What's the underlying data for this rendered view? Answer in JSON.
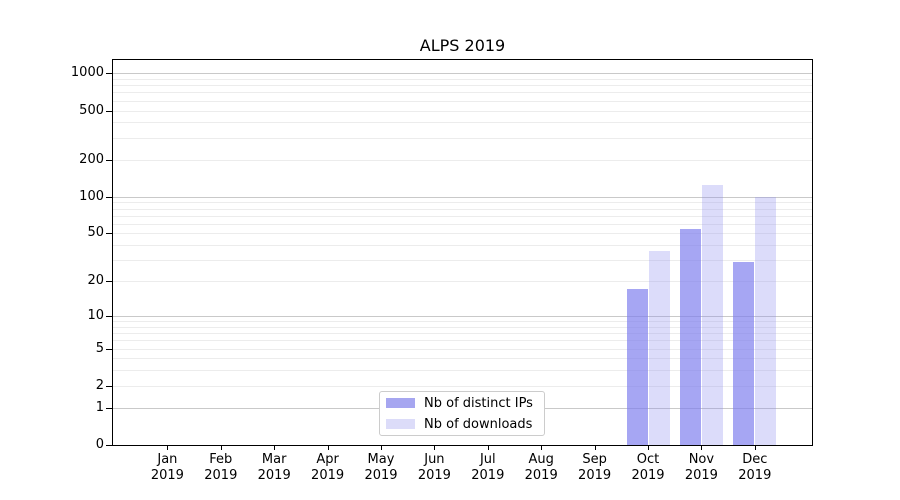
{
  "title": "ALPS 2019",
  "chart_data": {
    "type": "bar",
    "title": "ALPS 2019",
    "categories": [
      "Jan 2019",
      "Feb 2019",
      "Mar 2019",
      "Apr 2019",
      "May 2019",
      "Jun 2019",
      "Jul 2019",
      "Aug 2019",
      "Sep 2019",
      "Oct 2019",
      "Nov 2019",
      "Dec 2019"
    ],
    "series": [
      {
        "name": "Nb of distinct IPs",
        "color": "#a6a6f0",
        "fill": "rgba(124,124,238,0.68)",
        "values": [
          0,
          0,
          0,
          0,
          0,
          0,
          0,
          0,
          0,
          17,
          54,
          29
        ]
      },
      {
        "name": "Nb of downloads",
        "color": "#dcdcf9",
        "fill": "rgba(140,140,240,0.30)",
        "values": [
          0,
          0,
          0,
          0,
          0,
          0,
          0,
          0,
          0,
          36,
          125,
          100
        ]
      }
    ],
    "xlabel": "",
    "ylabel": "",
    "yscale": "log1p",
    "y_ticks": [
      0,
      1,
      2,
      5,
      10,
      20,
      50,
      100,
      200,
      500,
      1000
    ],
    "ylim": [
      0,
      1280
    ],
    "grid": true,
    "legend_position": "lower center"
  },
  "colors": {
    "grid_minor": "#ececec",
    "grid_major": "#c9c9c9",
    "spine": "#000000",
    "text": "#000000"
  }
}
